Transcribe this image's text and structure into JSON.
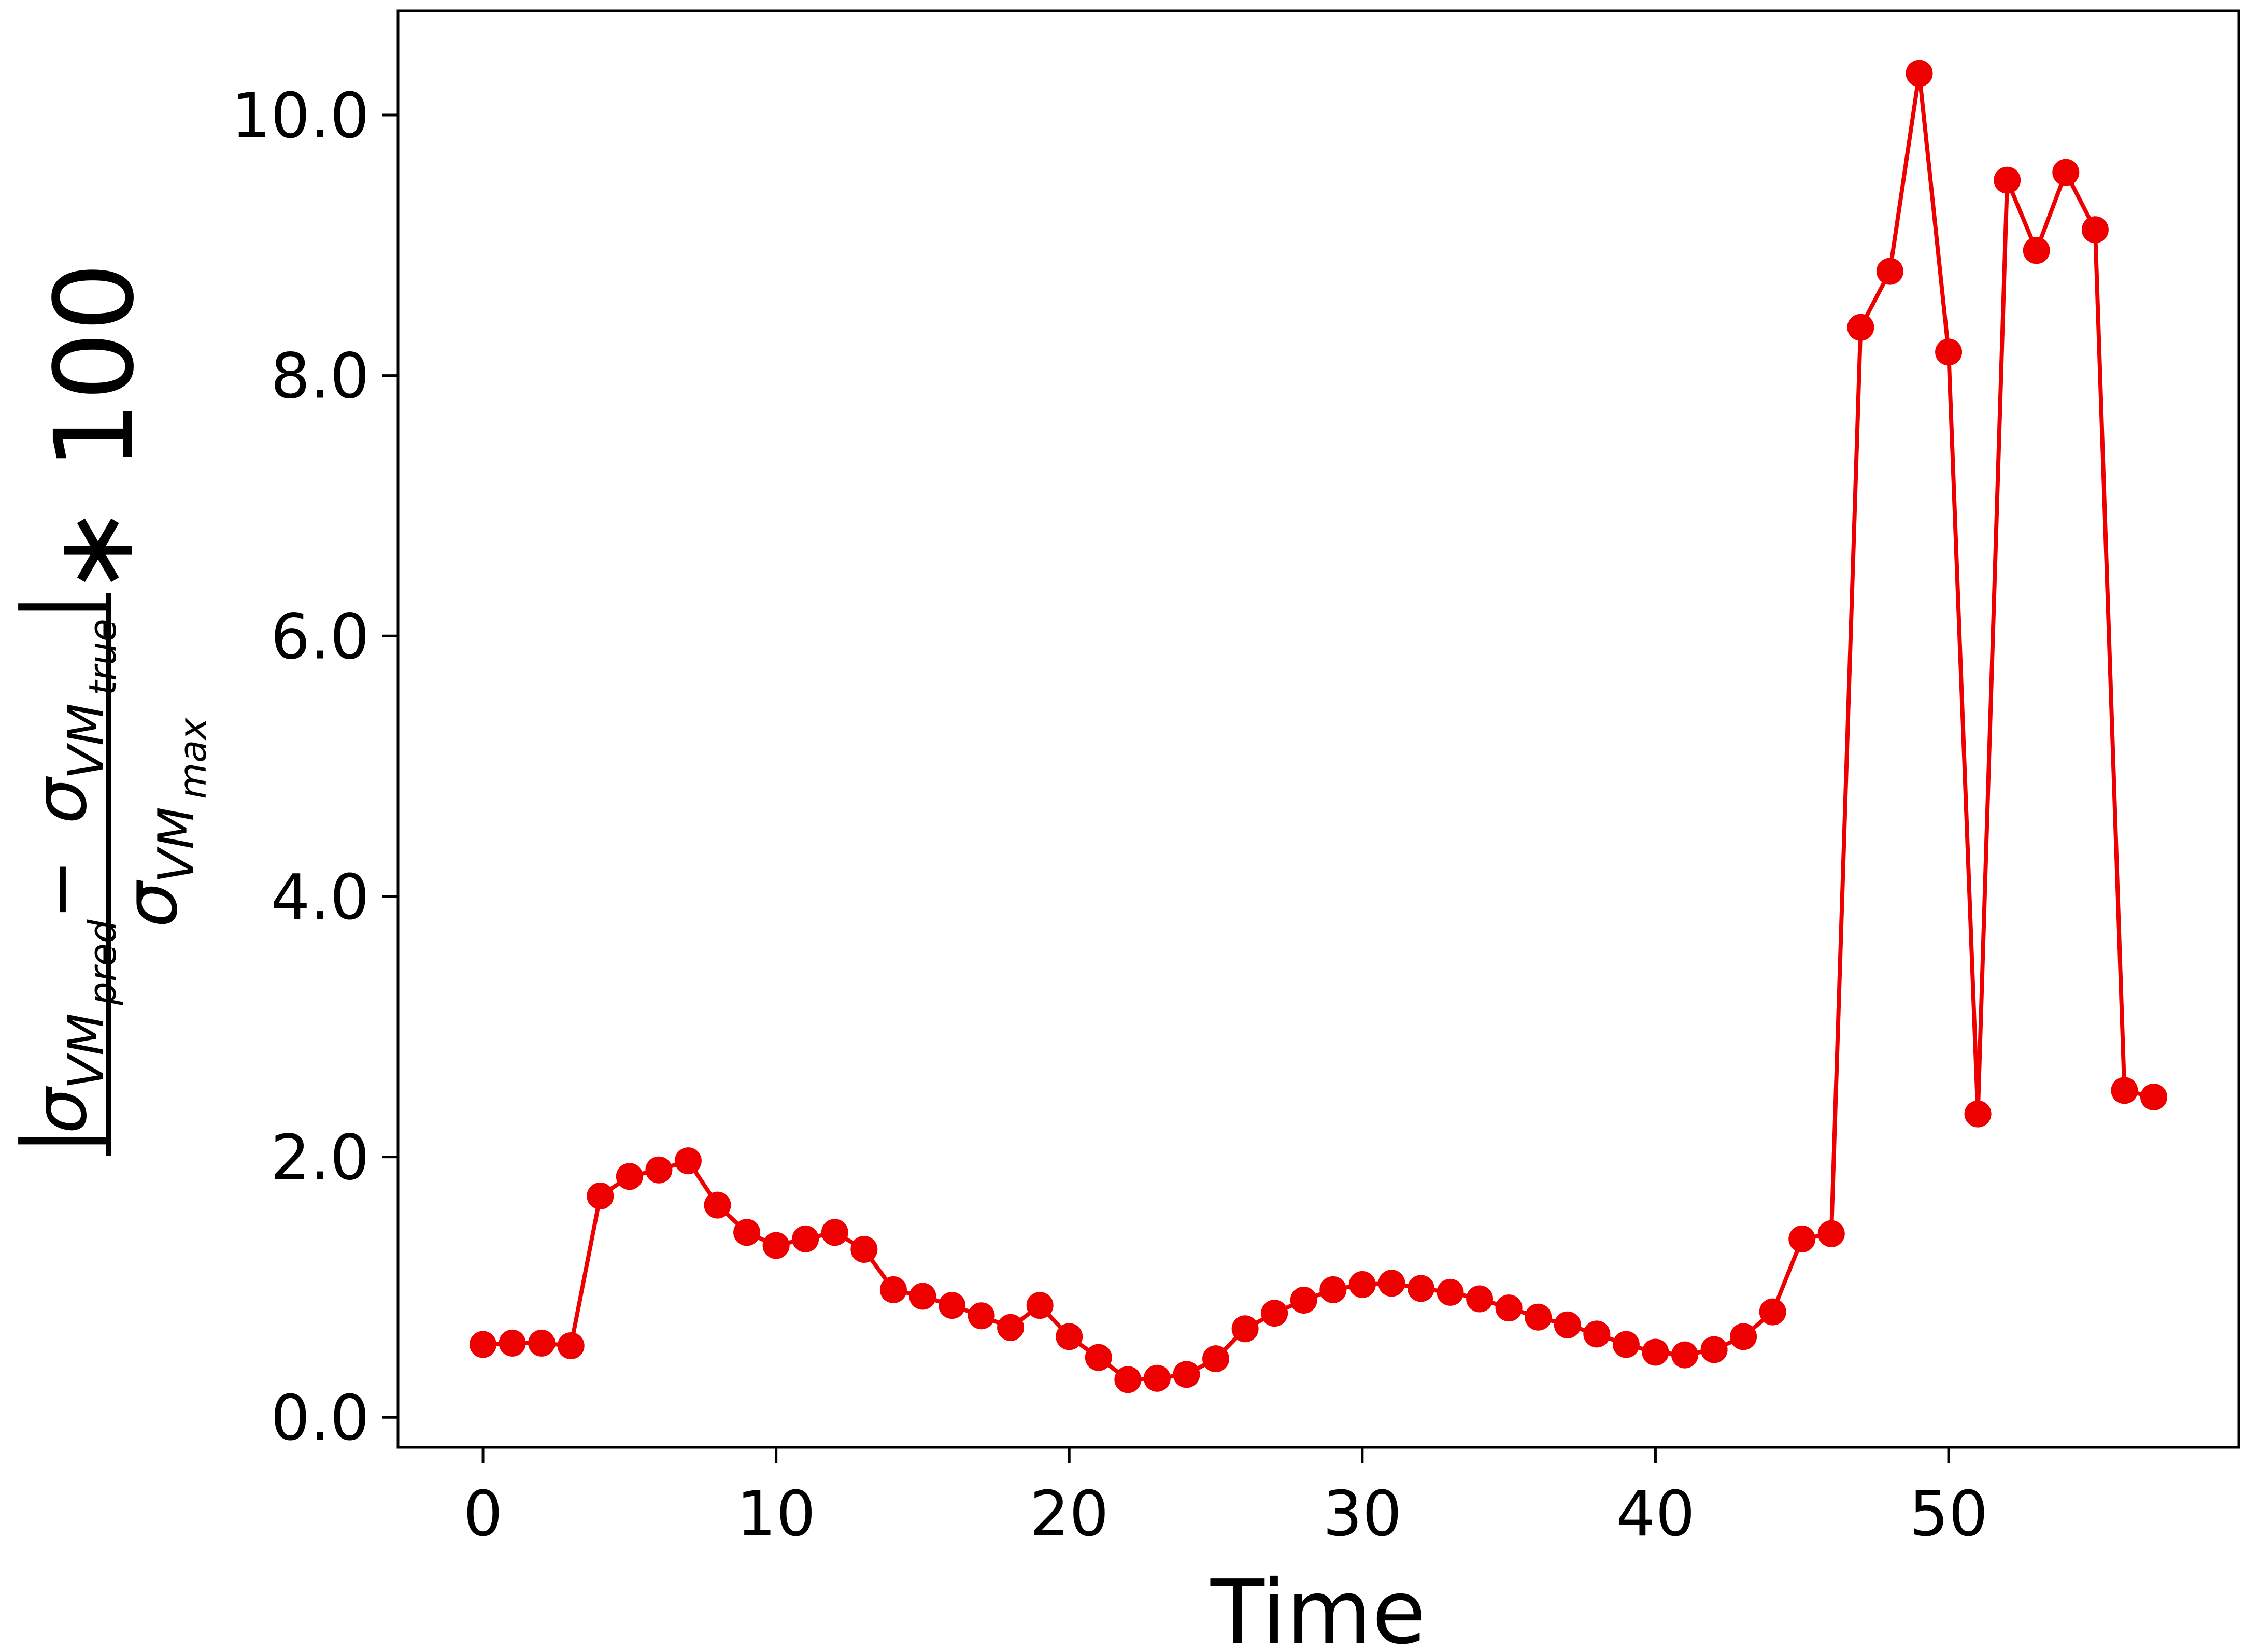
{
  "chart_data": {
    "type": "line",
    "xlabel": "Time",
    "ylabel_parts": {
      "abs_open": "|",
      "sigma_1": "σ",
      "sub_1": "VM",
      "subsub_1": "pred",
      "minus": " − ",
      "sigma_2": "σ",
      "sub_2": "VM",
      "subsub_2": "true",
      "abs_close": "|",
      "sigma_den": "σ",
      "sub_den": "VM",
      "subsub_den": "max",
      "multiplier": " ∗ 100"
    },
    "xlim": [
      -2.9,
      59.9
    ],
    "ylim": [
      -0.23,
      10.8
    ],
    "x_ticks": [
      0,
      10,
      20,
      30,
      40,
      50
    ],
    "x_tick_labels": [
      "0",
      "10",
      "20",
      "30",
      "40",
      "50"
    ],
    "y_ticks": [
      0,
      2,
      4,
      6,
      8,
      10
    ],
    "y_tick_labels": [
      "0.0",
      "2.0",
      "4.0",
      "6.0",
      "8.0",
      "10.0"
    ],
    "grid": false,
    "series": [
      {
        "color": "#ee0000",
        "marker": "circle",
        "x": [
          0,
          1,
          2,
          3,
          4,
          5,
          6,
          7,
          8,
          9,
          10,
          11,
          12,
          13,
          14,
          15,
          16,
          17,
          18,
          19,
          20,
          21,
          22,
          23,
          24,
          25,
          26,
          27,
          28,
          29,
          30,
          31,
          32,
          33,
          34,
          35,
          36,
          37,
          38,
          39,
          40,
          41,
          42,
          43,
          44,
          45,
          46,
          47,
          48,
          49,
          50,
          51,
          52,
          53,
          54,
          55,
          56,
          57
        ],
        "y": [
          0.56,
          0.57,
          0.57,
          0.55,
          1.7,
          1.85,
          1.9,
          1.97,
          1.63,
          1.42,
          1.32,
          1.37,
          1.42,
          1.29,
          0.98,
          0.93,
          0.86,
          0.78,
          0.69,
          0.86,
          0.62,
          0.46,
          0.29,
          0.3,
          0.33,
          0.45,
          0.68,
          0.8,
          0.9,
          0.98,
          1.02,
          1.03,
          0.99,
          0.96,
          0.91,
          0.84,
          0.77,
          0.71,
          0.64,
          0.56,
          0.5,
          0.48,
          0.52,
          0.62,
          0.81,
          1.37,
          1.41,
          8.37,
          8.8,
          10.32,
          8.18,
          2.33,
          9.5,
          8.96,
          9.56,
          9.12,
          2.51,
          2.46
        ]
      }
    ]
  }
}
